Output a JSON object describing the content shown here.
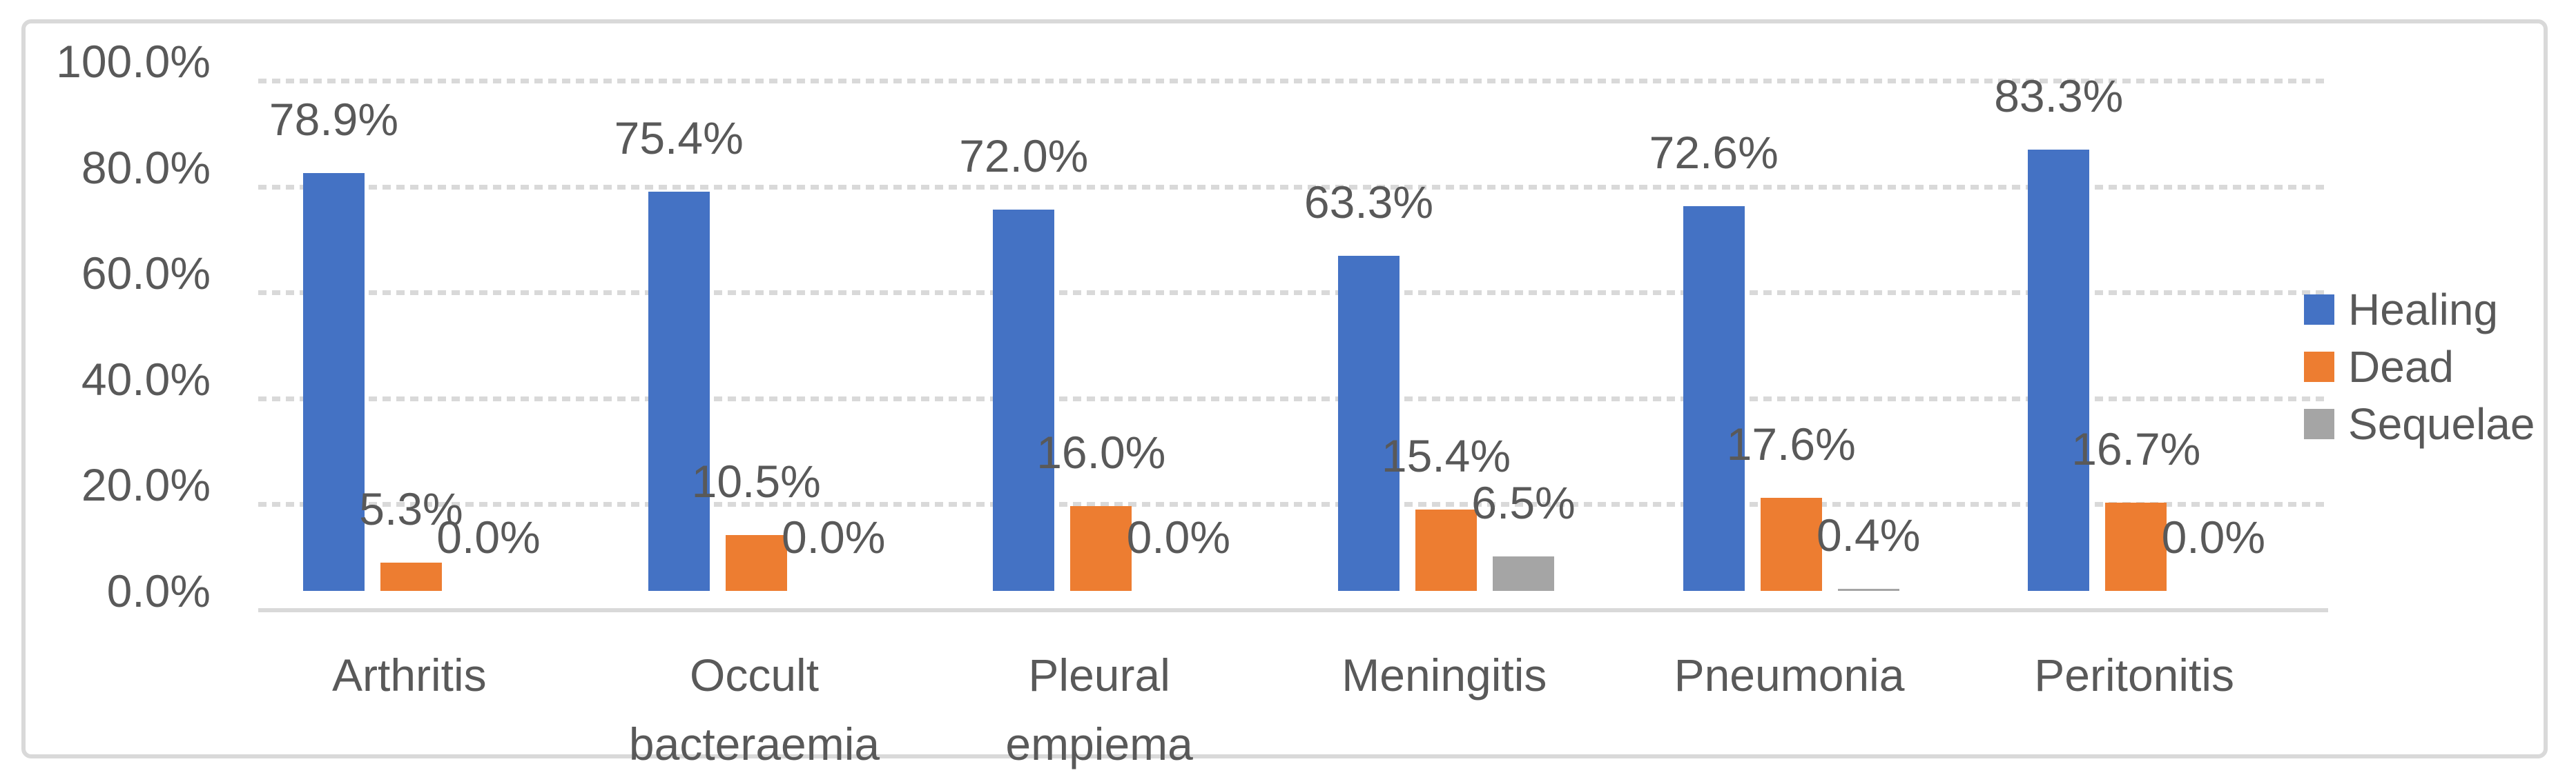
{
  "chart_data": {
    "type": "bar",
    "title": "",
    "categories": [
      "Arthritis",
      "Occult bacteraemia",
      "Pleural empiema",
      "Meningitis",
      "Pneumonia",
      "Peritonitis"
    ],
    "category_display_lines": [
      [
        "Arthritis"
      ],
      [
        "Occult",
        "bacteraemia"
      ],
      [
        "Pleural",
        "empiema"
      ],
      [
        "Meningitis"
      ],
      [
        "Pneumonia"
      ],
      [
        "Peritonitis"
      ]
    ],
    "series": [
      {
        "name": "Healing",
        "color": "#4472C4",
        "values": [
          78.9,
          75.4,
          72.0,
          63.3,
          72.6,
          83.3
        ],
        "data_labels": [
          "78.9%",
          "75.4%",
          "72.0%",
          "63.3%",
          "72.6%",
          "83.3%"
        ]
      },
      {
        "name": "Dead",
        "color": "#ED7D31",
        "values": [
          5.3,
          10.5,
          16.0,
          15.4,
          17.6,
          16.7
        ],
        "data_labels": [
          "5.3%",
          "10.5%",
          "16.0%",
          "15.4%",
          "17.6%",
          "16.7%"
        ]
      },
      {
        "name": "Sequelae",
        "color": "#A5A5A5",
        "values": [
          0.0,
          0.0,
          0.0,
          6.5,
          0.4,
          0.0
        ],
        "data_labels": [
          "0.0%",
          "0.0%",
          "0.0%",
          "6.5%",
          "0.4%",
          "0.0%"
        ]
      }
    ],
    "y_axis": {
      "min": 0,
      "max": 100,
      "step": 20,
      "tick_labels": [
        "0.0%",
        "20.0%",
        "40.0%",
        "60.0%",
        "80.0%",
        "100.0%"
      ]
    },
    "grid": "horizontal-dashed",
    "legend_position": "right",
    "data_label_position": "outside-end",
    "colors": {
      "text": "#595959",
      "gridline": "#D9D9D9",
      "frame_border": "#D9D9D9",
      "background": "#FFFFFF"
    }
  }
}
